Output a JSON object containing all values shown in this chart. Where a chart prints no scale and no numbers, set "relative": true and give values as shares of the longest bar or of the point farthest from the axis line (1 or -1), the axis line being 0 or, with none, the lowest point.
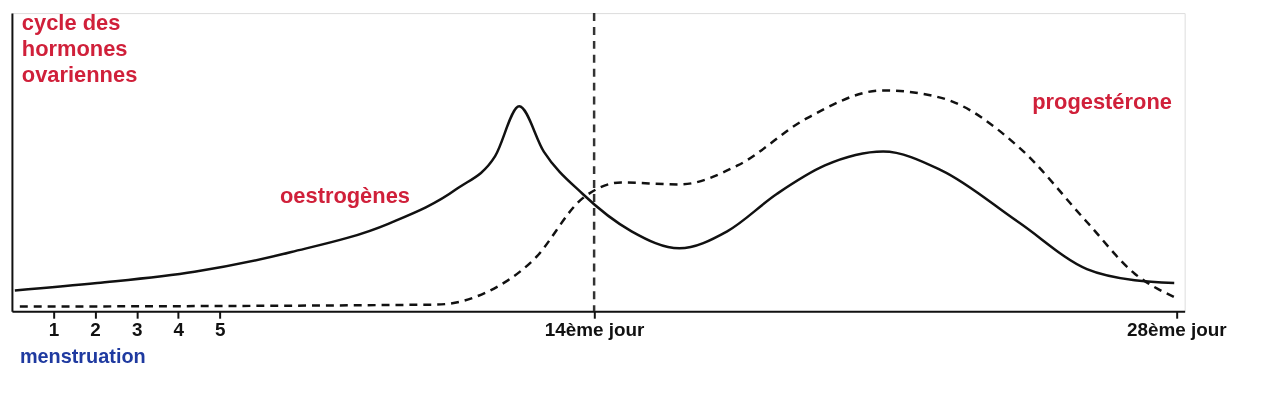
{
  "chart_data": {
    "type": "line",
    "relative": true,
    "ylabel": "cycle des\nhormones\novariennes",
    "xlim": [
      0,
      28.2
    ],
    "xticks": [
      1,
      2,
      3,
      4,
      5,
      {
        "value": 14,
        "label": "14ème jour"
      },
      {
        "value": 28,
        "label": "28ème jour"
      }
    ],
    "annotations": [
      "menstruation"
    ],
    "ref_lines": [
      {
        "axis": "x",
        "value": 14,
        "line_style": "dashed",
        "color": "#333333"
      }
    ],
    "grid": false,
    "series": [
      {
        "name": "oestrogènes",
        "color": "#111111",
        "line_style": "solid",
        "x": [
          0.07,
          2.05,
          4.39,
          6.72,
          9.05,
          10.69,
          11.62,
          12.2,
          12.79,
          13.72,
          14.9,
          16.05,
          17.2,
          18.4,
          19.55,
          20.95,
          22.35,
          24.2,
          25.85,
          27.0,
          27.95
        ],
        "values": [
          0.094,
          0.128,
          0.179,
          0.268,
          0.396,
          0.553,
          0.702,
          0.928,
          0.723,
          0.532,
          0.362,
          0.285,
          0.362,
          0.532,
          0.66,
          0.723,
          0.638,
          0.404,
          0.191,
          0.14,
          0.128
        ]
      },
      {
        "name": "progestérone",
        "color": "#111111",
        "line_style": "dashed",
        "x": [
          0.19,
          10.2,
          11.4,
          12.55,
          13.72,
          14.65,
          16.05,
          17.45,
          19.1,
          20.95,
          22.35,
          24.2,
          25.85,
          27.0,
          27.95
        ],
        "values": [
          0.021,
          0.03,
          0.085,
          0.234,
          0.511,
          0.583,
          0.574,
          0.66,
          0.872,
          1.0,
          0.966,
          0.745,
          0.404,
          0.17,
          0.064
        ]
      }
    ]
  }
}
